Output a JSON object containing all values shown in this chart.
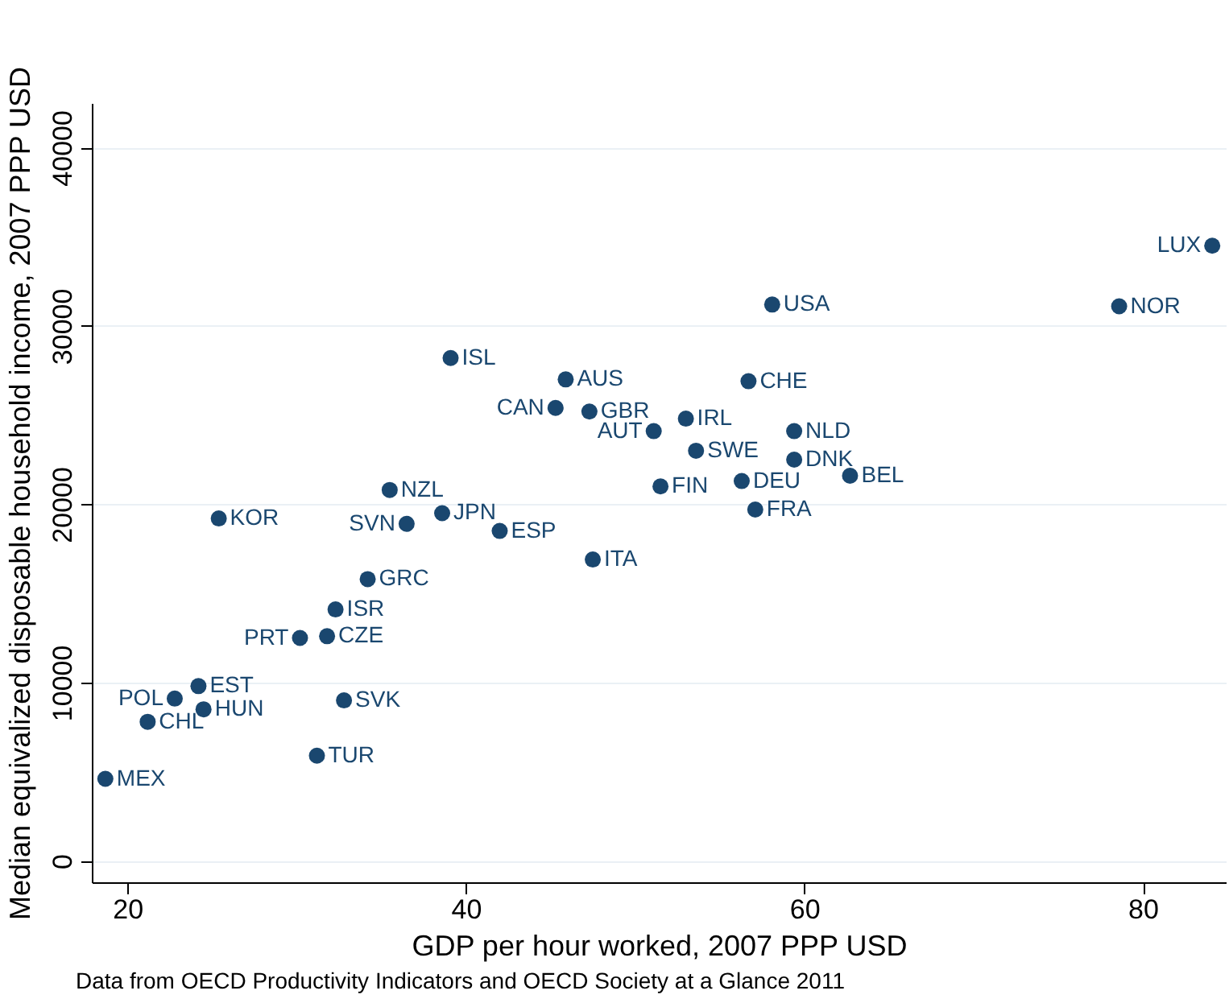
{
  "chart_data": {
    "type": "scatter",
    "xlabel": "GDP per hour worked, 2007 PPP USD",
    "ylabel": "Median equivalized disposable household income, 2007 PPP USD",
    "annotations": [
      "Data from OECD Productivity Indicators and OECD Society at a Glance 2011"
    ],
    "x": [
      18.7,
      21.2,
      22.8,
      24.2,
      24.5,
      25.4,
      30.2,
      31.8,
      32.3,
      34.2,
      31.2,
      32.8,
      35.5,
      36.5,
      38.6,
      39.1,
      42.0,
      47.5,
      45.3,
      45.9,
      47.3,
      51.1,
      53.0,
      53.6,
      51.5,
      58.1,
      56.7,
      56.3,
      57.1,
      59.4,
      59.4,
      62.7,
      78.6,
      84.1
    ],
    "values": [
      4600,
      7800,
      9100,
      9800,
      8500,
      19200,
      12500,
      12600,
      14100,
      15800,
      5900,
      9000,
      20800,
      18900,
      19500,
      28200,
      18500,
      16900,
      25400,
      27000,
      25200,
      24100,
      24800,
      23000,
      21000,
      31200,
      26900,
      21300,
      19700,
      24100,
      22500,
      21600,
      31100,
      34500
    ],
    "value_labels": [
      "MEX",
      "CHL",
      "POL",
      "EST",
      "HUN",
      "KOR",
      "PRT",
      "CZE",
      "ISR",
      "GRC",
      "TUR",
      "SVK",
      "NZL",
      "SVN",
      "JPN",
      "ISL",
      "ESP",
      "ITA",
      "CAN",
      "AUS",
      "GBR",
      "AUT",
      "IRL",
      "SWE",
      "FIN",
      "USA",
      "CHE",
      "DEU",
      "FRA",
      "NLD",
      "DNK",
      "BEL",
      "NOR",
      "LUX"
    ],
    "color": "#1a476f",
    "marker": "circle",
    "xlim": [
      17.9,
      84.9
    ],
    "xticks": [
      20,
      40,
      60,
      80
    ],
    "ylim": [
      -1200,
      42500
    ],
    "yticks": [
      0,
      10000,
      20000,
      30000,
      40000
    ],
    "grid": "y"
  }
}
